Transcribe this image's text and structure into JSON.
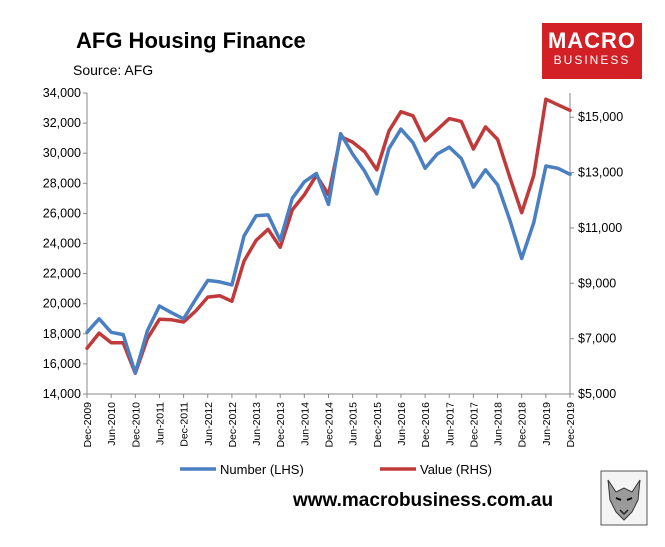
{
  "header": {
    "title": "AFG Housing Finance",
    "source": "Source: AFG"
  },
  "logo": {
    "line1": "MACRO",
    "line2": "BUSINESS",
    "color": "#d32026"
  },
  "footer": {
    "url": "www.macrobusiness.com.au"
  },
  "chart_data": {
    "type": "line",
    "x": [
      "Dec-2009",
      "Mar-2010",
      "Jun-2010",
      "Sep-2010",
      "Dec-2010",
      "Mar-2011",
      "Jun-2011",
      "Sep-2011",
      "Dec-2011",
      "Mar-2012",
      "Jun-2012",
      "Sep-2012",
      "Dec-2012",
      "Mar-2013",
      "Jun-2013",
      "Sep-2013",
      "Dec-2013",
      "Mar-2014",
      "Jun-2014",
      "Sep-2014",
      "Dec-2014",
      "Mar-2015",
      "Jun-2015",
      "Sep-2015",
      "Dec-2015",
      "Mar-2016",
      "Jun-2016",
      "Sep-2016",
      "Dec-2016",
      "Mar-2017",
      "Jun-2017",
      "Sep-2017",
      "Dec-2017",
      "Mar-2018",
      "Jun-2018",
      "Sep-2018",
      "Dec-2018",
      "Mar-2019",
      "Jun-2019",
      "Sep-2019",
      "Dec-2019"
    ],
    "xtick_labels": [
      "Dec-2009",
      "Jun-2010",
      "Dec-2010",
      "Jun-2011",
      "Dec-2011",
      "Jun-2012",
      "Dec-2012",
      "Jun-2013",
      "Dec-2013",
      "Jun-2014",
      "Dec-2014",
      "Jun-2015",
      "Dec-2015",
      "Jun-2016",
      "Dec-2016",
      "Jun-2017",
      "Dec-2017",
      "Jun-2018",
      "Dec-2018",
      "Jun-2019",
      "Dec-2019"
    ],
    "left_axis": {
      "ylim": [
        14000,
        34000
      ],
      "ticks": [
        14000,
        16000,
        18000,
        20000,
        22000,
        24000,
        26000,
        28000,
        30000,
        32000,
        34000
      ],
      "tick_labels": [
        "14,000",
        "16,000",
        "18,000",
        "20,000",
        "22,000",
        "24,000",
        "26,000",
        "28,000",
        "30,000",
        "32,000",
        "34,000"
      ]
    },
    "right_axis": {
      "ylim": [
        5000,
        15875
      ],
      "ticks": [
        5000,
        7000,
        9000,
        11000,
        13000,
        15000
      ],
      "tick_labels": [
        "$5,000",
        "$7,000",
        "$9,000",
        "$11,000",
        "$13,000",
        "$15,000"
      ]
    },
    "series": [
      {
        "name": "Number (LHS)",
        "axis": "left",
        "color": "#4a7fc1",
        "values": [
          18100,
          19000,
          18100,
          17950,
          15400,
          18200,
          19850,
          19400,
          19000,
          20300,
          21550,
          21450,
          21250,
          24500,
          25850,
          25900,
          24200,
          27000,
          28100,
          28650,
          26600,
          31300,
          29950,
          28800,
          27300,
          30300,
          31600,
          30700,
          29000,
          29950,
          30400,
          29650,
          27750,
          28900,
          27900,
          25600,
          23000,
          25400,
          29150,
          29000,
          28600
        ],
        "note_values_shown": true
      },
      {
        "name": "Value (RHS)",
        "axis": "right",
        "color": "#c0393b",
        "values": [
          6650,
          7200,
          6850,
          6850,
          5750,
          7000,
          7700,
          7680,
          7600,
          8000,
          8500,
          8550,
          8350,
          9800,
          10550,
          10950,
          10300,
          11650,
          12200,
          12900,
          12200,
          14300,
          14100,
          13750,
          13100,
          14500,
          15200,
          15050,
          14150,
          14550,
          14950,
          14850,
          13850,
          14650,
          14200,
          12850,
          11550,
          12900,
          15650,
          15450,
          15250
        ]
      }
    ],
    "grid": false,
    "legend": "bottom"
  }
}
